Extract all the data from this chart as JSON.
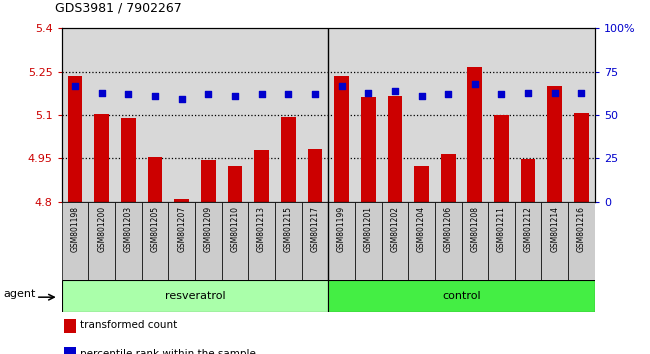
{
  "title": "GDS3981 / 7902267",
  "categories": [
    "GSM801198",
    "GSM801200",
    "GSM801203",
    "GSM801205",
    "GSM801207",
    "GSM801209",
    "GSM801210",
    "GSM801213",
    "GSM801215",
    "GSM801217",
    "GSM801199",
    "GSM801201",
    "GSM801202",
    "GSM801204",
    "GSM801206",
    "GSM801208",
    "GSM801211",
    "GSM801212",
    "GSM801214",
    "GSM801216"
  ],
  "bar_values": [
    5.235,
    5.105,
    5.09,
    4.955,
    4.81,
    4.943,
    4.923,
    4.98,
    5.093,
    4.983,
    5.235,
    5.163,
    5.166,
    4.923,
    4.967,
    5.265,
    5.1,
    4.948,
    5.2,
    5.108
  ],
  "percentile_values": [
    67,
    63,
    62,
    61,
    59,
    62,
    61,
    62,
    62,
    62,
    67,
    63,
    64,
    61,
    62,
    68,
    62,
    63,
    63,
    63
  ],
  "n_resveratrol": 10,
  "ylim_left": [
    4.8,
    5.4
  ],
  "ylim_right": [
    0,
    100
  ],
  "yticks_left": [
    4.8,
    4.95,
    5.1,
    5.25,
    5.4
  ],
  "ytick_labels_left": [
    "4.8",
    "4.95",
    "5.1",
    "5.25",
    "5.4"
  ],
  "ytick_labels_right": [
    "0",
    "25",
    "50",
    "75",
    "100%"
  ],
  "hlines": [
    5.25,
    5.1,
    4.95
  ],
  "bar_color": "#CC0000",
  "dot_color": "#0000CC",
  "plot_bg": "#d8d8d8",
  "resveratrol_color": "#aaffaa",
  "control_color": "#44ee44",
  "legend_items": [
    {
      "label": "transformed count",
      "color": "#CC0000"
    },
    {
      "label": "percentile rank within the sample",
      "color": "#0000CC"
    }
  ]
}
